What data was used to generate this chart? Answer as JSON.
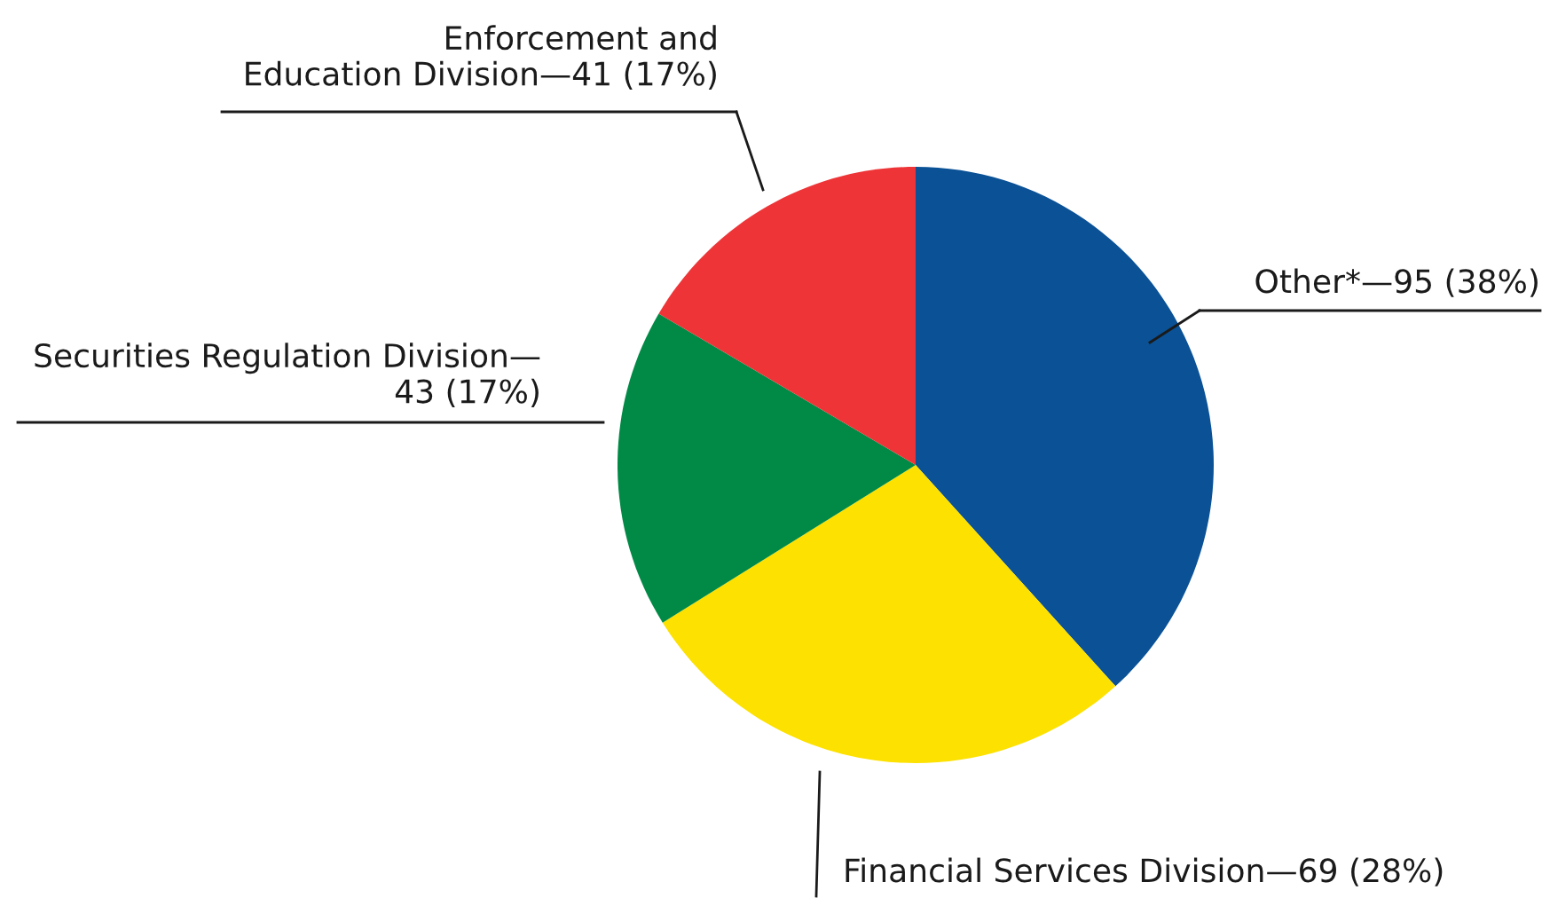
{
  "chart_data": {
    "type": "pie",
    "categories": [
      "Other*—95 (38%)",
      "Financial Services Division—69 (28%)",
      "Securities Regulation Division—\n43 (17%)",
      "Enforcement and\nEducation Division—41 (17%)"
    ],
    "values": [
      95,
      69,
      43,
      41
    ],
    "colors": [
      "#0a5195",
      "#fde100",
      "#008a45",
      "#ee3436"
    ]
  }
}
